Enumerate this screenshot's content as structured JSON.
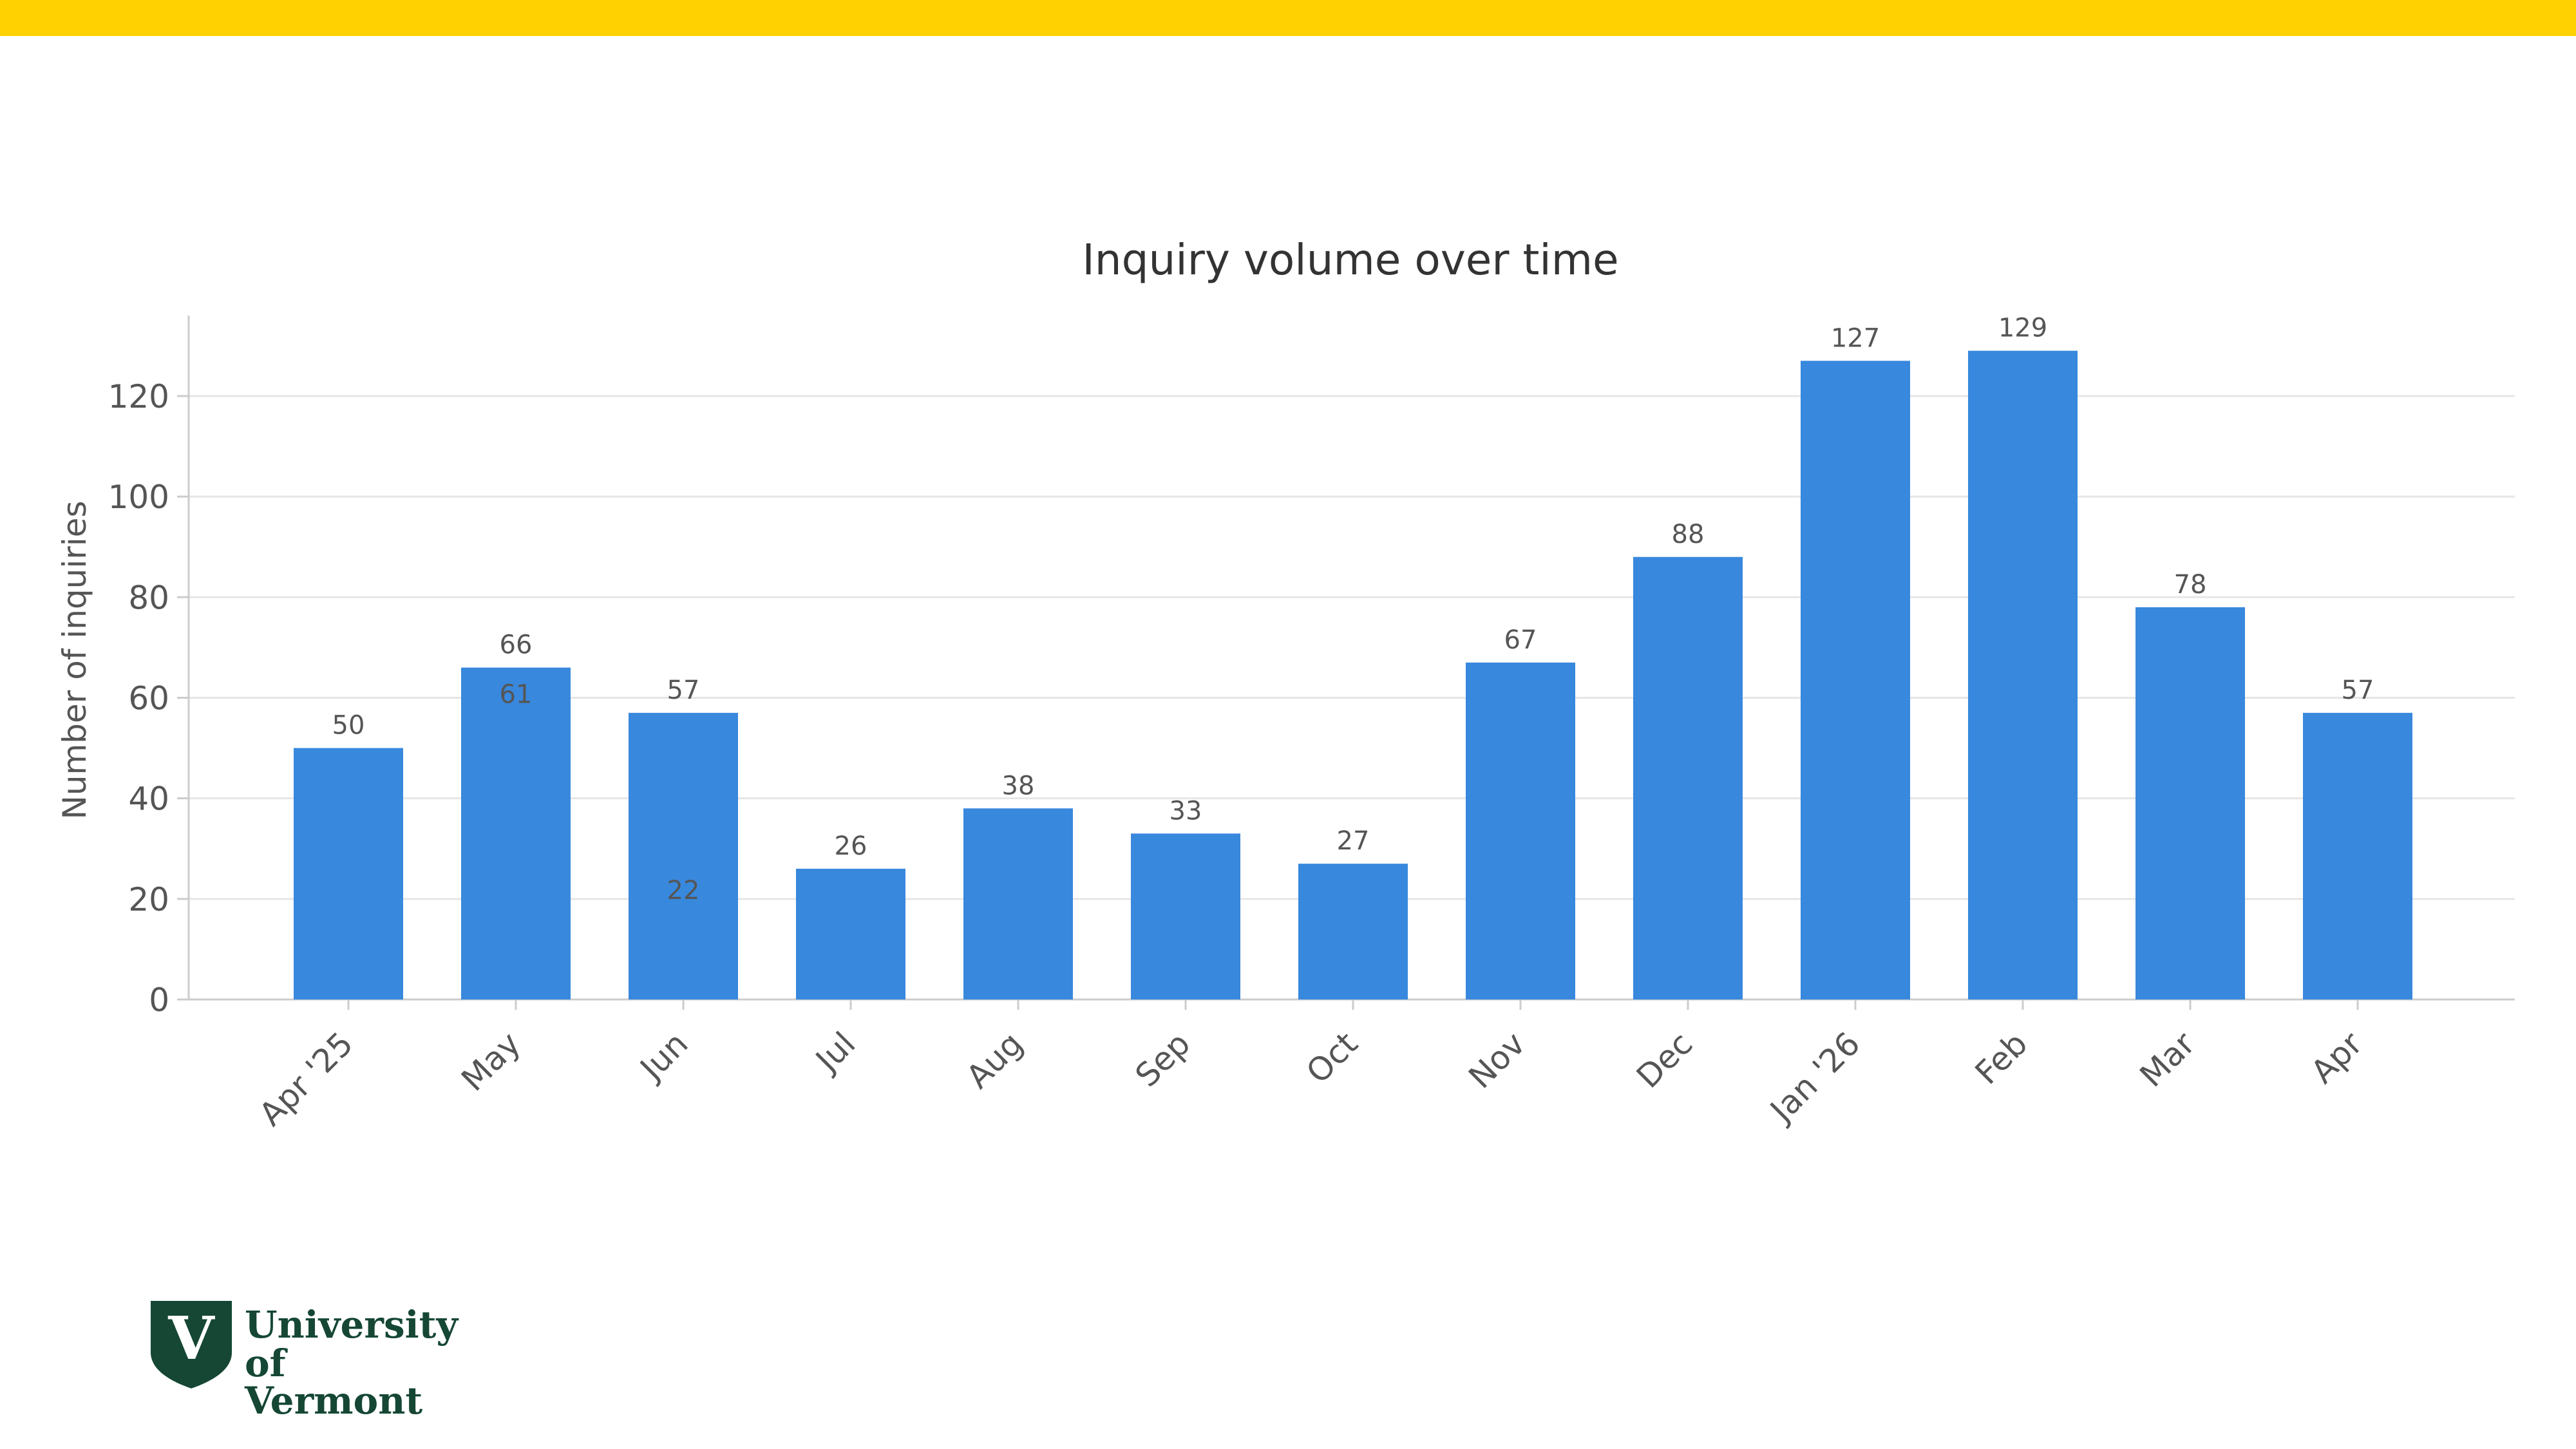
{
  "theme": {
    "top_bar_color": "#FFD100",
    "bar_color": "#3888DD",
    "text_color": "#555555",
    "title_color": "#333333",
    "grid_color": "#E6E6E6",
    "axis_color": "#CCCCCC",
    "logo_color": "#154734"
  },
  "logo": {
    "mark": "V",
    "line1": "University",
    "line2": "of Vermont",
    "icon": "shield-icon"
  },
  "chart_data": {
    "type": "bar",
    "title": "Inquiry volume over time",
    "xlabel": "",
    "ylabel": "Number of inquiries",
    "categories": [
      "Apr '25",
      "May",
      "Jun",
      "Jul",
      "Aug",
      "Sep",
      "Oct",
      "Nov",
      "Dec",
      "Jan '26",
      "Feb",
      "Mar",
      "Apr"
    ],
    "values": [
      50,
      66,
      57,
      26,
      38,
      33,
      27,
      67,
      88,
      127,
      129,
      78,
      57
    ],
    "ylim": [
      0,
      136
    ],
    "yticks": [
      0,
      20,
      40,
      60,
      80,
      100,
      120
    ],
    "grid": true,
    "legend": "none",
    "annotations": [
      {
        "category_index": 1,
        "value": 61,
        "text": "61"
      },
      {
        "category_index": 2,
        "value": 22,
        "text": "22"
      }
    ]
  }
}
